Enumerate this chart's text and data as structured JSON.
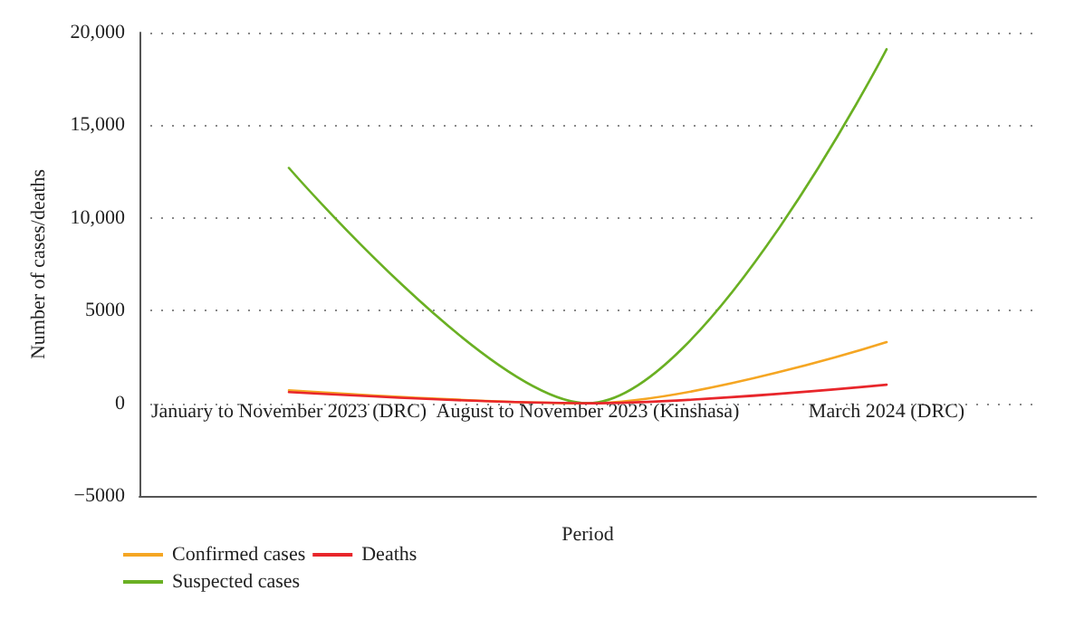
{
  "chart_data": {
    "type": "line",
    "xlabel": "Period",
    "ylabel": "Number of cases/deaths",
    "categories": [
      "January to November 2023 (DRC)",
      "August to November 2023 (Kinshasa)",
      "March 2024 (DRC)"
    ],
    "series": [
      {
        "name": "Confirmed cases",
        "color": "#f5a623",
        "values": [
          700,
          0,
          3300
        ]
      },
      {
        "name": "Suspected cases",
        "color": "#6ab023",
        "values": [
          12700,
          0,
          19100
        ]
      },
      {
        "name": "Deaths",
        "color": "#e8262b",
        "values": [
          600,
          0,
          1000
        ]
      }
    ],
    "ylim": [
      -5000,
      20000
    ],
    "yticks": [
      {
        "value": -5000,
        "label": "−5000"
      },
      0,
      5000,
      {
        "value": 10000,
        "label": "10,000"
      },
      {
        "value": 15000,
        "label": "15,000"
      },
      {
        "value": 20000,
        "label": "20,000"
      }
    ],
    "grid": "y",
    "legend": "bottom left",
    "marker": "none",
    "line_style": "solid"
  }
}
